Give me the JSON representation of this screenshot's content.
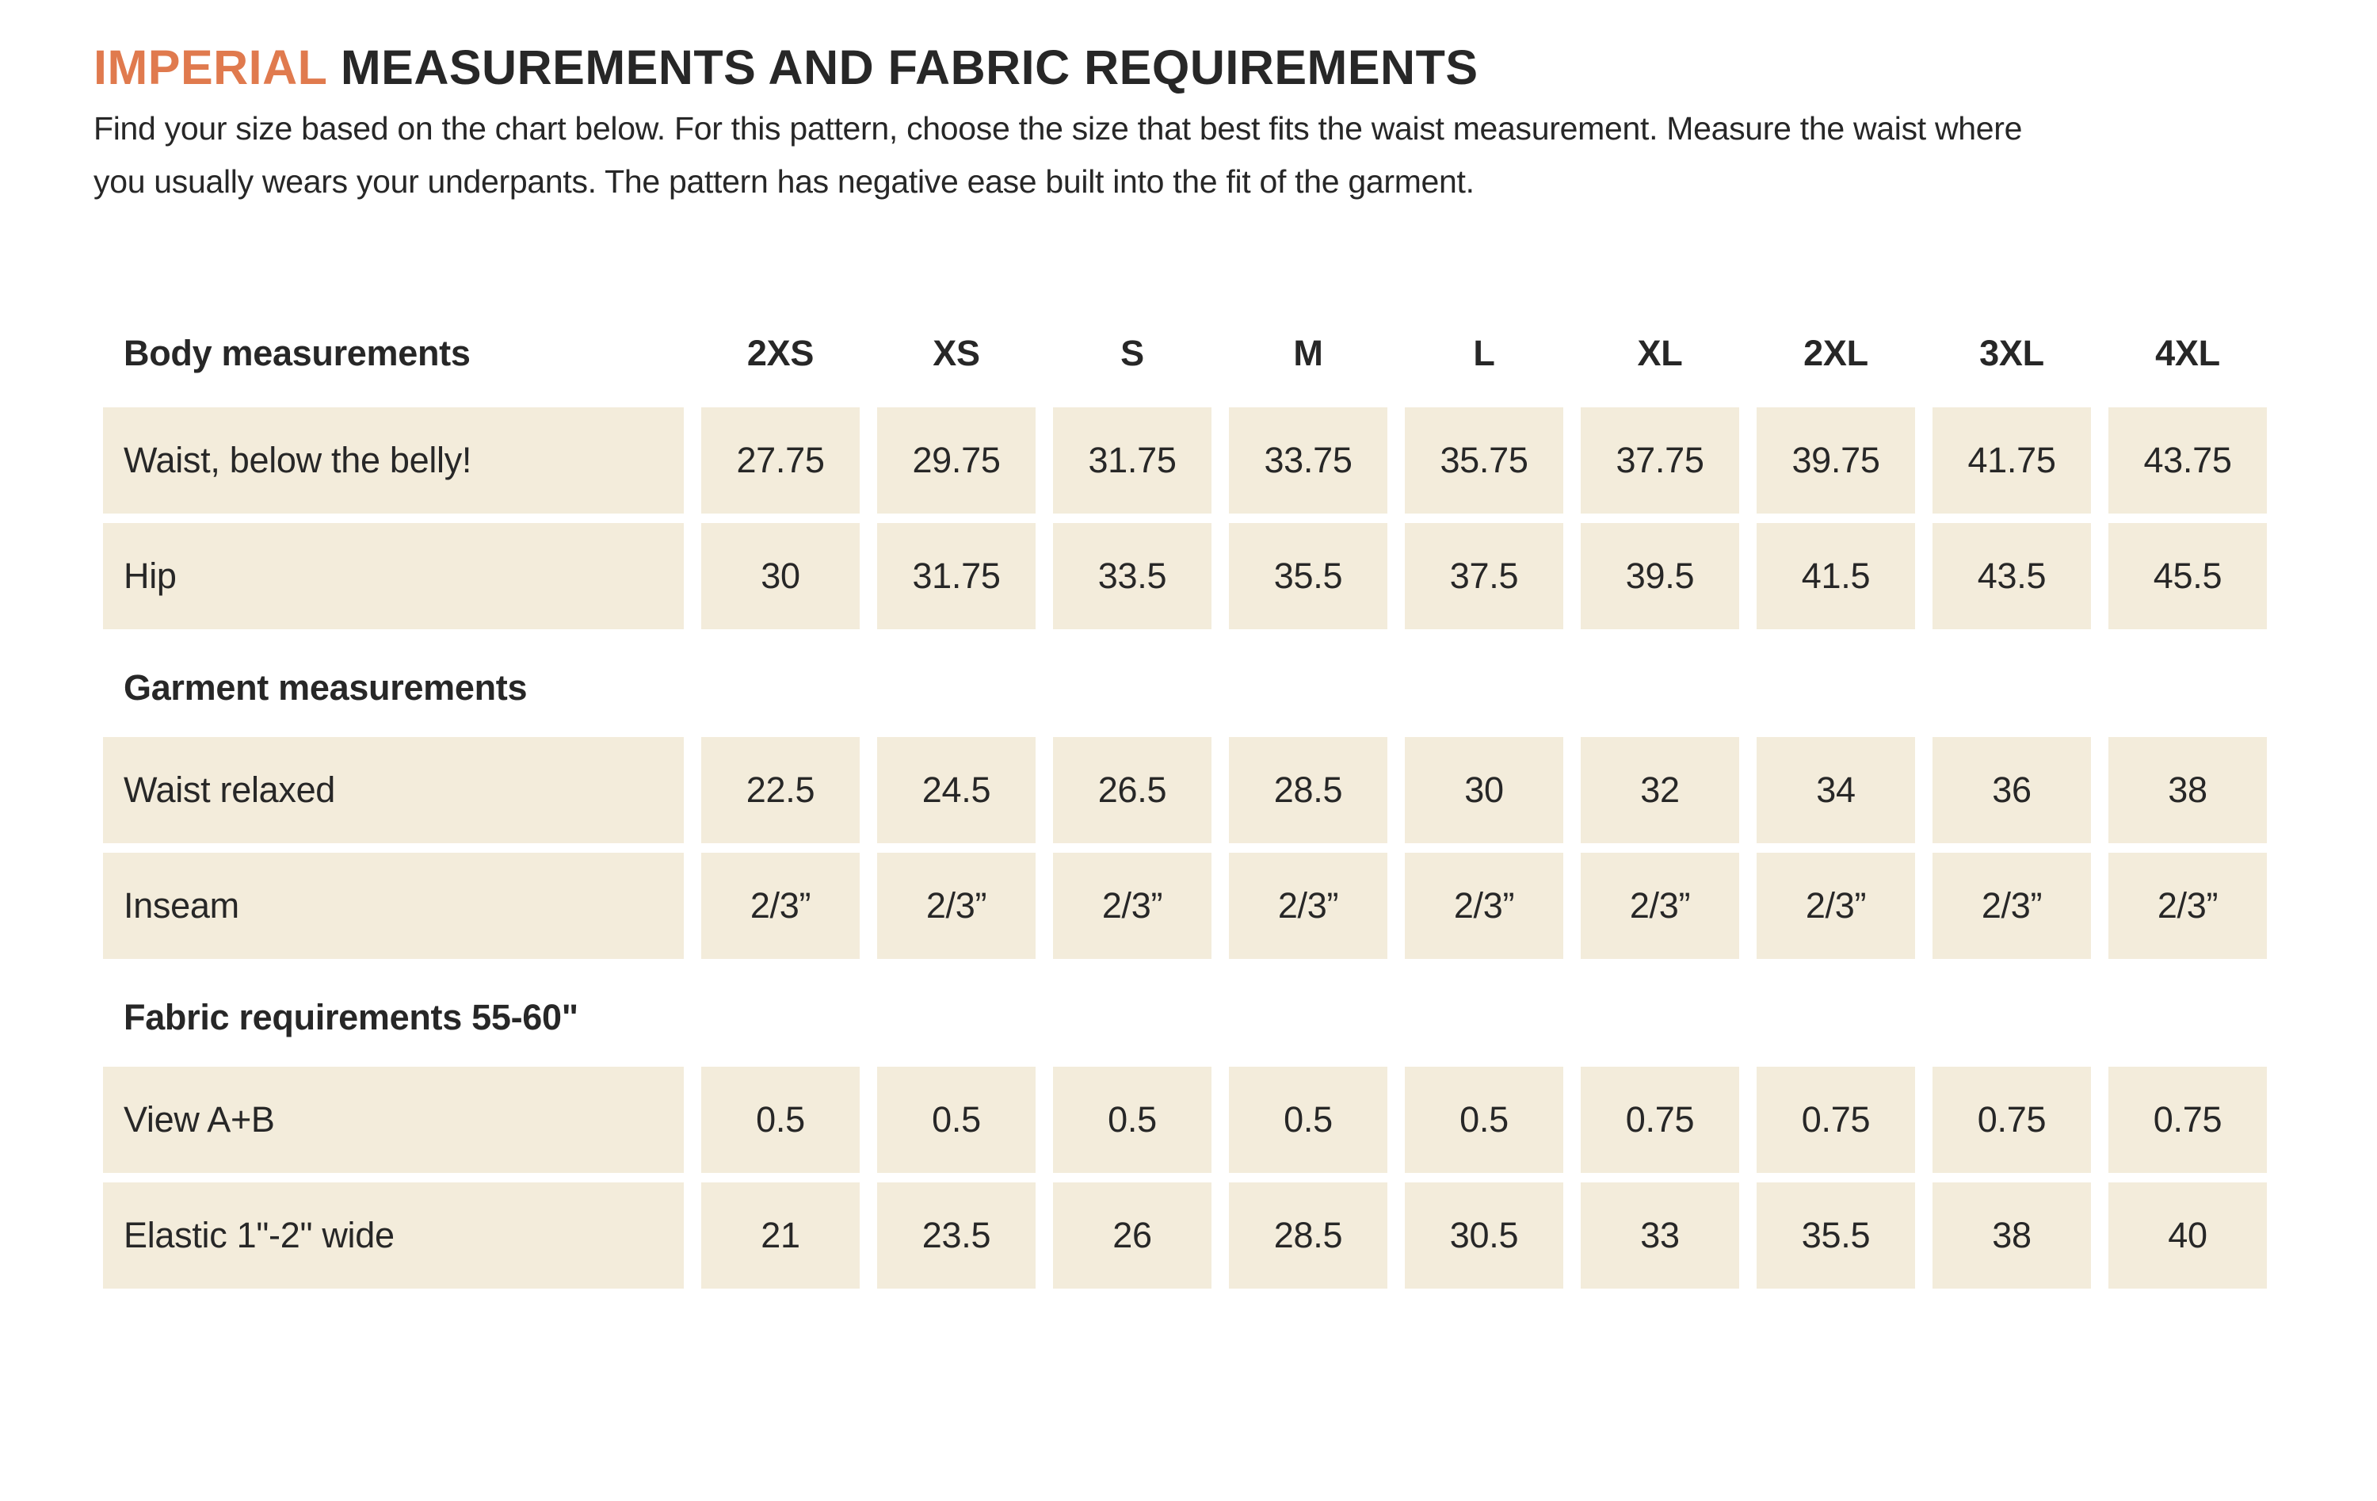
{
  "title": {
    "accent": "IMPERIAL",
    "rest": "MEASUREMENTS AND FABRIC REQUIREMENTS"
  },
  "intro": "Find your size based on the chart below. For this pattern, choose the size that best fits the waist measurement. Measure the waist where you usually wears your underpants. The pattern has negative ease built into the fit of the garment.",
  "colors": {
    "accent_orange": "#E07A4E",
    "cell_beige": "#F3ECDB",
    "ink": "#272727"
  },
  "table": {
    "column_header_label": "Body measurements",
    "sizes": [
      "2XS",
      "XS",
      "S",
      "M",
      "L",
      "XL",
      "2XL",
      "3XL",
      "4XL"
    ],
    "groups": [
      {
        "heading": null,
        "rows": [
          {
            "label": "Waist, below the belly!",
            "values": [
              "27.75",
              "29.75",
              "31.75",
              "33.75",
              "35.75",
              "37.75",
              "39.75",
              "41.75",
              "43.75"
            ]
          },
          {
            "label": "Hip",
            "values": [
              "30",
              "31.75",
              "33.5",
              "35.5",
              "37.5",
              "39.5",
              "41.5",
              "43.5",
              "45.5"
            ]
          }
        ]
      },
      {
        "heading": "Garment measurements",
        "rows": [
          {
            "label": "Waist relaxed",
            "values": [
              "22.5",
              "24.5",
              "26.5",
              "28.5",
              "30",
              "32",
              "34",
              "36",
              "38"
            ]
          },
          {
            "label": "Inseam",
            "values": [
              "2/3”",
              "2/3”",
              "2/3”",
              "2/3”",
              "2/3”",
              "2/3”",
              "2/3”",
              "2/3”",
              "2/3”"
            ]
          }
        ]
      },
      {
        "heading": "Fabric requirements 55-60\"",
        "rows": [
          {
            "label": "View A+B",
            "values": [
              "0.5",
              "0.5",
              "0.5",
              "0.5",
              "0.5",
              "0.75",
              "0.75",
              "0.75",
              "0.75"
            ]
          },
          {
            "label": "Elastic 1\"-2\" wide",
            "values": [
              "21",
              "23.5",
              "26",
              "28.5",
              "30.5",
              "33",
              "35.5",
              "38",
              "40"
            ]
          }
        ]
      }
    ]
  }
}
